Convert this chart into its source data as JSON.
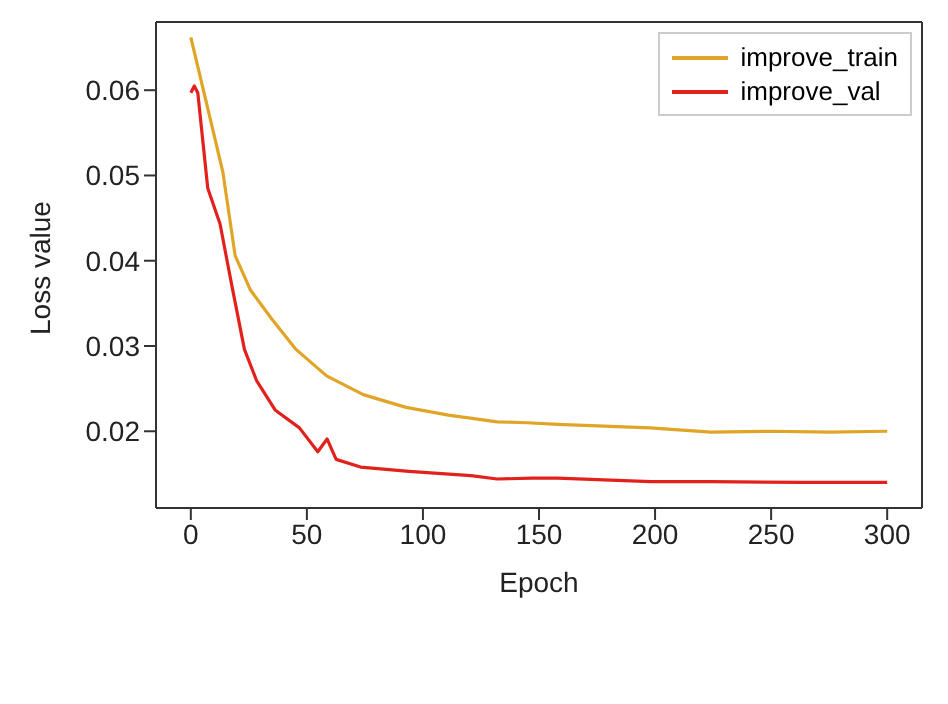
{
  "chart_data": {
    "type": "line",
    "xlabel": "Epoch",
    "ylabel": "Loss value",
    "xlim": [
      -15,
      315
    ],
    "xticks": [
      0,
      50,
      100,
      150,
      200,
      250,
      300
    ],
    "ylim": [
      0.011,
      0.068
    ],
    "yticks": [
      0.02,
      0.03,
      0.04,
      0.05,
      0.06
    ],
    "legend": "top right",
    "marker": "none",
    "line_style": "solid",
    "series": [
      {
        "name": "improve_train",
        "color": "#e0a526",
        "x": [
          0,
          8.5,
          13.8,
          19.1,
          25.6,
          34.8,
          45.3,
          58.5,
          74.3,
          92.7,
          111,
          132,
          145,
          158,
          198,
          224,
          250,
          275,
          300
        ],
        "values": [
          0.0662,
          0.0565,
          0.0504,
          0.0406,
          0.0366,
          0.0332,
          0.0296,
          0.0265,
          0.0243,
          0.0228,
          0.0219,
          0.0211,
          0.021,
          0.0208,
          0.0204,
          0.0199,
          0.02,
          0.0199,
          0.02
        ]
      },
      {
        "name": "improve_val",
        "color": "#e3211c",
        "x": [
          0,
          1.5,
          3,
          7.3,
          12.6,
          17.8,
          23.1,
          28.4,
          36.3,
          46.8,
          54.7,
          58.7,
          62.6,
          73.1,
          94,
          120.7,
          132,
          147,
          158,
          198,
          224,
          264,
          300
        ],
        "values": [
          0.0597,
          0.0605,
          0.0597,
          0.0485,
          0.0443,
          0.0369,
          0.0296,
          0.0259,
          0.0225,
          0.0204,
          0.0176,
          0.0191,
          0.0167,
          0.0158,
          0.0153,
          0.0148,
          0.0144,
          0.0145,
          0.0145,
          0.0141,
          0.0141,
          0.014,
          0.014
        ]
      }
    ]
  }
}
